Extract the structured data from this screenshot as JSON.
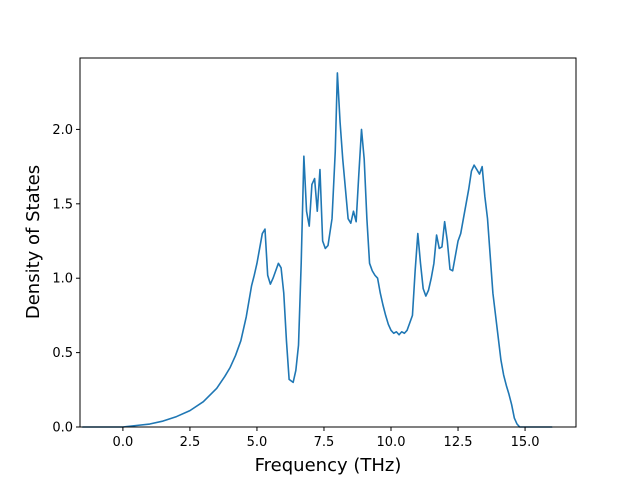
{
  "chart_data": {
    "type": "line",
    "title": "",
    "xlabel": "Frequency (THz)",
    "ylabel": "Density of States",
    "xlim": [
      -1.6,
      16.9
    ],
    "ylim": [
      0.0,
      2.48
    ],
    "grid": false,
    "legend": "none",
    "x_ticks": [
      0.0,
      2.5,
      5.0,
      7.5,
      10.0,
      12.5,
      15.0
    ],
    "x_tick_labels": [
      "0.0",
      "2.5",
      "5.0",
      "7.5",
      "10.0",
      "12.5",
      "15.0"
    ],
    "y_ticks": [
      0.0,
      0.5,
      1.0,
      1.5,
      2.0
    ],
    "y_tick_labels": [
      "0.0",
      "0.5",
      "1.0",
      "1.5",
      "2.0"
    ],
    "colors": {
      "line": "#1f77b4",
      "axes": "#000000",
      "background": "#ffffff"
    },
    "series": [
      {
        "x": [
          -1.5,
          -1.0,
          -0.5,
          0.0,
          0.5,
          1.0,
          1.5,
          2.0,
          2.5,
          3.0,
          3.5,
          3.8,
          4.0,
          4.2,
          4.4,
          4.6,
          4.8,
          4.9,
          5.0,
          5.1,
          5.2,
          5.3,
          5.4,
          5.5,
          5.6,
          5.7,
          5.8,
          5.9,
          6.0,
          6.1,
          6.2,
          6.35,
          6.45,
          6.55,
          6.65,
          6.75,
          6.85,
          6.95,
          7.05,
          7.15,
          7.25,
          7.35,
          7.45,
          7.55,
          7.65,
          7.8,
          7.92,
          8.0,
          8.1,
          8.2,
          8.3,
          8.4,
          8.5,
          8.6,
          8.7,
          8.8,
          8.9,
          9.0,
          9.1,
          9.2,
          9.3,
          9.4,
          9.5,
          9.6,
          9.7,
          9.8,
          9.9,
          10.0,
          10.1,
          10.2,
          10.3,
          10.4,
          10.5,
          10.6,
          10.7,
          10.8,
          10.9,
          11.0,
          11.1,
          11.2,
          11.3,
          11.4,
          11.5,
          11.6,
          11.7,
          11.8,
          11.9,
          12.0,
          12.1,
          12.2,
          12.3,
          12.4,
          12.5,
          12.6,
          12.7,
          12.8,
          12.9,
          13.0,
          13.1,
          13.2,
          13.3,
          13.4,
          13.5,
          13.6,
          13.7,
          13.8,
          13.9,
          14.0,
          14.1,
          14.2,
          14.3,
          14.4,
          14.5,
          14.6,
          14.7,
          14.8,
          15.0,
          15.5,
          16.0
        ],
        "y": [
          0.0,
          0.0,
          0.0,
          0.0,
          0.01,
          0.02,
          0.04,
          0.07,
          0.11,
          0.17,
          0.26,
          0.34,
          0.4,
          0.48,
          0.58,
          0.74,
          0.95,
          1.02,
          1.1,
          1.2,
          1.3,
          1.33,
          1.02,
          0.96,
          1.0,
          1.05,
          1.1,
          1.07,
          0.9,
          0.58,
          0.32,
          0.3,
          0.38,
          0.55,
          1.1,
          1.82,
          1.45,
          1.35,
          1.63,
          1.67,
          1.45,
          1.73,
          1.25,
          1.2,
          1.22,
          1.4,
          1.85,
          2.38,
          2.05,
          1.8,
          1.6,
          1.4,
          1.37,
          1.45,
          1.38,
          1.7,
          2.0,
          1.8,
          1.4,
          1.1,
          1.05,
          1.02,
          1.0,
          0.9,
          0.82,
          0.75,
          0.69,
          0.65,
          0.63,
          0.64,
          0.62,
          0.64,
          0.63,
          0.65,
          0.7,
          0.75,
          1.05,
          1.3,
          1.1,
          0.93,
          0.88,
          0.92,
          1.0,
          1.1,
          1.29,
          1.2,
          1.21,
          1.38,
          1.25,
          1.06,
          1.05,
          1.15,
          1.25,
          1.3,
          1.4,
          1.5,
          1.6,
          1.72,
          1.76,
          1.73,
          1.7,
          1.75,
          1.55,
          1.4,
          1.15,
          0.9,
          0.75,
          0.6,
          0.45,
          0.35,
          0.28,
          0.22,
          0.15,
          0.06,
          0.02,
          0.0,
          0.0,
          0.0,
          0.0
        ]
      }
    ]
  }
}
